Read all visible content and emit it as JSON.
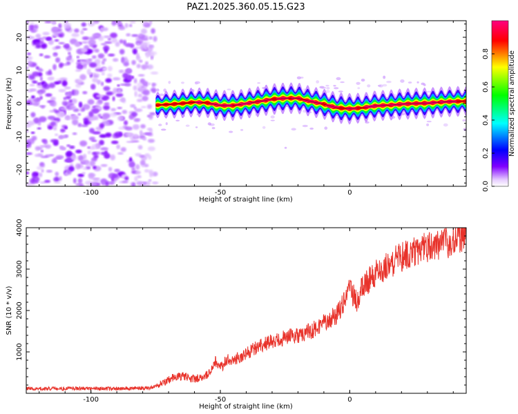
{
  "colors": {
    "snr_line": "#e8322a",
    "axis": "#000000",
    "background": "#ffffff"
  },
  "chart_data": [
    {
      "type": "heatmap",
      "title": "PAZ1.2025.360.05.15.G23",
      "xlabel": "Height of straight line (km)",
      "ylabel": "Frequency (Hz)",
      "xlim": [
        -125,
        45
      ],
      "ylim": [
        -25,
        25
      ],
      "xticks": [
        -100,
        -50,
        0
      ],
      "yticks": [
        -20,
        -10,
        0,
        10,
        20
      ],
      "colorbar": {
        "label": "Normalized spectral amplitude",
        "range": [
          0,
          1
        ],
        "ticks": [
          "0.0",
          "0.2",
          "0.4",
          "0.6",
          "0.8"
        ],
        "tick_values": [
          0.0,
          0.2,
          0.4,
          0.6,
          0.8
        ],
        "colormap": [
          "#ffffff",
          "#8000ff",
          "#0000ff",
          "#00ffff",
          "#00ff00",
          "#ffff00",
          "#ff0000",
          "#ff0080"
        ]
      },
      "noise_region_x": [
        -125,
        -75
      ],
      "signal_track": {
        "x": [
          -75,
          -70,
          -65,
          -60,
          -55,
          -50,
          -45,
          -40,
          -35,
          -30,
          -25,
          -20,
          -15,
          -10,
          -5,
          0,
          5,
          10,
          15,
          20,
          25,
          30,
          35,
          40,
          45
        ],
        "frequency": [
          -0.5,
          -0.3,
          0.0,
          0.4,
          0.2,
          -0.6,
          -0.6,
          0.0,
          0.6,
          1.3,
          1.6,
          1.6,
          0.6,
          -0.2,
          -1.3,
          -1.6,
          -1.3,
          -0.7,
          -0.5,
          -0.2,
          0.0,
          0.1,
          0.4,
          0.6,
          0.7
        ],
        "amplitude": [
          0.55,
          0.75,
          0.85,
          0.85,
          0.9,
          0.95,
          0.95,
          0.9,
          0.95,
          1.0,
          1.0,
          1.0,
          0.95,
          0.95,
          1.0,
          1.0,
          0.9,
          0.95,
          0.95,
          1.0,
          1.0,
          1.0,
          0.95,
          0.95,
          0.9
        ]
      }
    },
    {
      "type": "line",
      "title": "",
      "xlabel": "Height of straight line (km)",
      "ylabel": "SNR (10 * v/v)",
      "xlim": [
        -125,
        45
      ],
      "ylim": [
        0,
        4000
      ],
      "xticks": [
        -100,
        -50,
        0
      ],
      "yticks": [
        1000,
        2000,
        3000,
        4000
      ],
      "series": [
        {
          "name": "SNR",
          "x": [
            -125,
            -115,
            -105,
            -95,
            -85,
            -77,
            -72,
            -68,
            -65,
            -60,
            -55,
            -52,
            -50,
            -47,
            -45,
            -40,
            -35,
            -30,
            -25,
            -20,
            -15,
            -10,
            -5,
            -2,
            0,
            3,
            5,
            7,
            10,
            15,
            20,
            25,
            30,
            35,
            40,
            45
          ],
          "values": [
            120,
            110,
            120,
            110,
            120,
            130,
            250,
            400,
            420,
            350,
            450,
            800,
            600,
            850,
            800,
            950,
            1150,
            1250,
            1350,
            1400,
            1500,
            1700,
            1900,
            2200,
            2500,
            2200,
            2650,
            2700,
            2900,
            3100,
            3300,
            3400,
            3550,
            3600,
            3700,
            3800
          ]
        }
      ]
    }
  ]
}
